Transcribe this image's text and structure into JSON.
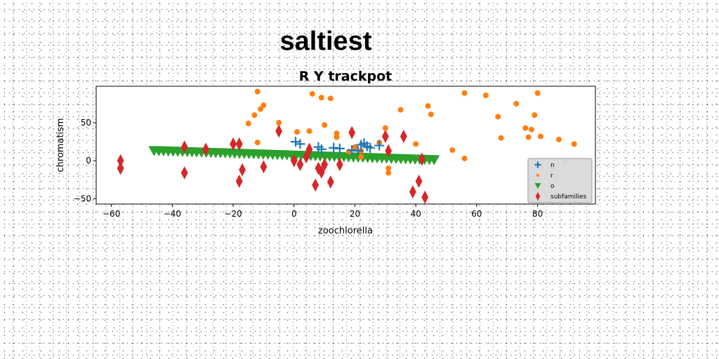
{
  "chart_data": {
    "type": "scatter",
    "super_title": "saltiest",
    "title": "R Y trackpot",
    "xlabel": "zoochlorella",
    "ylabel": "chromatism",
    "xlim": [
      -65,
      99
    ],
    "ylim": [
      -57,
      98
    ],
    "xticks": [
      -60,
      -40,
      -20,
      0,
      20,
      40,
      60,
      80
    ],
    "yticks": [
      -50,
      0,
      50
    ],
    "grid": false,
    "legend_position": "lower-right",
    "series": [
      {
        "name": "n",
        "marker": "plus",
        "color": "#1f77b4",
        "x": [
          0.5,
          2,
          8,
          9,
          13,
          15,
          19,
          21,
          22,
          23,
          24,
          25,
          28
        ],
        "y": [
          25,
          22,
          18,
          15,
          17,
          16,
          14,
          13,
          21,
          23,
          19,
          17,
          20
        ]
      },
      {
        "name": "r",
        "marker": "circle",
        "color": "#ff7f0e",
        "x": [
          -12,
          -11,
          -10,
          -13,
          -15,
          -12,
          -5,
          1,
          6,
          5,
          9,
          10,
          12,
          14,
          14,
          18,
          20,
          22,
          22,
          28,
          30,
          31,
          31,
          35,
          40,
          44,
          45,
          52,
          56,
          56,
          63,
          67,
          68,
          73,
          76,
          77,
          78,
          79,
          80,
          81,
          85,
          86,
          87,
          89,
          92
        ],
        "y": [
          91,
          68,
          73,
          60,
          49,
          24,
          50,
          38,
          88,
          39,
          83,
          47,
          82,
          31,
          36,
          12,
          18,
          13,
          5,
          24,
          43,
          -10,
          -16,
          67,
          22,
          72,
          61,
          14,
          89,
          3,
          86,
          58,
          30,
          75,
          43,
          31,
          41,
          60,
          89,
          32,
          -10,
          -20,
          28,
          -1,
          22
        ]
      },
      {
        "name": "o",
        "marker": "triangle-down",
        "color": "#2ca02c",
        "x_start": -46,
        "x_end": 46,
        "y_start": 13,
        "y_end": 1,
        "count": 60
      },
      {
        "name": "subfamilies",
        "marker": "diamond",
        "color": "#d62728",
        "x": [
          -57,
          -57,
          -36,
          -36,
          -29,
          -20,
          -18,
          -17,
          -18,
          -10,
          -5,
          0,
          2,
          4,
          5,
          8,
          9,
          10,
          7,
          12,
          15,
          19,
          30,
          31,
          36,
          39,
          41,
          42,
          43
        ],
        "y": [
          0,
          -10,
          18,
          -16,
          15,
          22,
          22,
          -12,
          -27,
          -8,
          39,
          0,
          -5,
          5,
          15,
          -10,
          -15,
          -5,
          -32,
          -28,
          -5,
          37,
          32,
          13,
          32,
          -41,
          -27,
          2,
          -48
        ]
      }
    ]
  }
}
